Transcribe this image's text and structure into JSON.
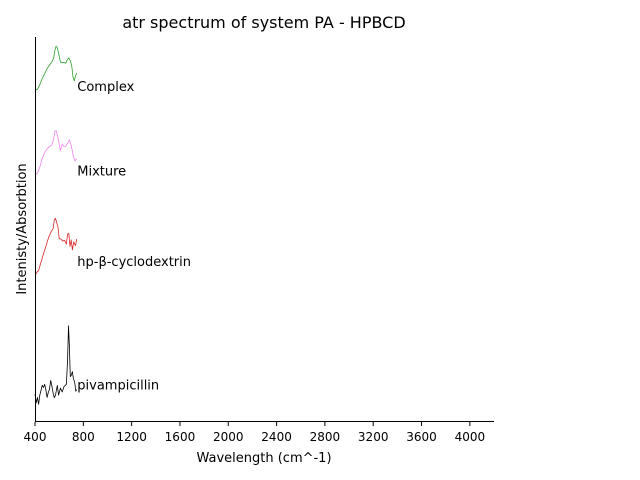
{
  "chart_data": {
    "type": "line",
    "title": "atr spectrum of system PA - HPBCD",
    "xlabel": "Wavelength (cm^-1)",
    "ylabel": "Intenisty/Absorbtion",
    "xlim": [
      400,
      4200
    ],
    "xticks": [
      400,
      800,
      1200,
      1600,
      2000,
      2400,
      2800,
      3200,
      3600,
      4000
    ],
    "xtick_labels": [
      "400",
      "800",
      "1200",
      "1600",
      "2000",
      "2400",
      "2800",
      "3200",
      "3600",
      "4000"
    ],
    "ylim": [
      0,
      100
    ],
    "y_ticks_shown": false,
    "grid": false,
    "legend": "none",
    "series": [
      {
        "name": "Complex",
        "color": "#2ca02c",
        "label_at": [
          750,
          86
        ],
        "points": [
          [
            400,
            86.1
          ],
          [
            420,
            86.4
          ],
          [
            440,
            87.6
          ],
          [
            460,
            89.2
          ],
          [
            480,
            90.5
          ],
          [
            500,
            91.8
          ],
          [
            520,
            92.7
          ],
          [
            540,
            93.5
          ],
          [
            555,
            94.6
          ],
          [
            565,
            96.6
          ],
          [
            575,
            97.6
          ],
          [
            585,
            97.2
          ],
          [
            595,
            95.8
          ],
          [
            610,
            93.5
          ],
          [
            625,
            93.3
          ],
          [
            640,
            93.4
          ],
          [
            655,
            93.2
          ],
          [
            665,
            94.0
          ],
          [
            680,
            94.6
          ],
          [
            695,
            93.6
          ],
          [
            705,
            92.4
          ],
          [
            715,
            89.6
          ],
          [
            725,
            88.6
          ],
          [
            735,
            89.9
          ],
          [
            745,
            90.6
          ]
        ]
      },
      {
        "name": "Mixture",
        "color": "#ee82ee",
        "label_at": [
          750,
          64
        ],
        "points": [
          [
            400,
            64.2
          ],
          [
            420,
            64.6
          ],
          [
            440,
            66.2
          ],
          [
            460,
            68.4
          ],
          [
            480,
            70.0
          ],
          [
            500,
            71.0
          ],
          [
            520,
            71.5
          ],
          [
            540,
            72.0
          ],
          [
            555,
            73.5
          ],
          [
            565,
            75.6
          ],
          [
            575,
            75.6
          ],
          [
            585,
            74.6
          ],
          [
            595,
            73.0
          ],
          [
            610,
            70.5
          ],
          [
            625,
            72.2
          ],
          [
            640,
            71.6
          ],
          [
            655,
            71.6
          ],
          [
            670,
            72.4
          ],
          [
            685,
            73.3
          ],
          [
            700,
            71.8
          ],
          [
            715,
            69.5
          ],
          [
            730,
            67.8
          ],
          [
            745,
            68.4
          ]
        ]
      },
      {
        "name": "hp-β-cyclodextrin",
        "color": "#d62728",
        "label_at": [
          750,
          40.5
        ],
        "points": [
          [
            400,
            38.0
          ],
          [
            415,
            38.9
          ],
          [
            430,
            39.3
          ],
          [
            445,
            41.0
          ],
          [
            460,
            42.5
          ],
          [
            475,
            44.2
          ],
          [
            490,
            45.6
          ],
          [
            505,
            47.2
          ],
          [
            520,
            48.5
          ],
          [
            535,
            49.5
          ],
          [
            550,
            50.2
          ],
          [
            560,
            52.5
          ],
          [
            570,
            52.9
          ],
          [
            580,
            51.8
          ],
          [
            590,
            50.6
          ],
          [
            600,
            47.6
          ],
          [
            615,
            47.5
          ],
          [
            630,
            47.0
          ],
          [
            645,
            47.2
          ],
          [
            660,
            46.2
          ],
          [
            670,
            48.8
          ],
          [
            680,
            49.0
          ],
          [
            690,
            45.6
          ],
          [
            700,
            47.3
          ],
          [
            710,
            44.7
          ],
          [
            720,
            46.8
          ],
          [
            735,
            45.8
          ],
          [
            745,
            47.5
          ]
        ]
      },
      {
        "name": "pivampicillin",
        "color": "#000000",
        "label_at": [
          750,
          8.4
        ],
        "points": [
          [
            400,
            7.2
          ],
          [
            410,
            5.0
          ],
          [
            420,
            6.4
          ],
          [
            430,
            4.6
          ],
          [
            440,
            7.0
          ],
          [
            450,
            8.2
          ],
          [
            460,
            9.5
          ],
          [
            470,
            9.0
          ],
          [
            480,
            9.8
          ],
          [
            490,
            8.3
          ],
          [
            500,
            6.4
          ],
          [
            510,
            7.7
          ],
          [
            520,
            8.5
          ],
          [
            530,
            10.8
          ],
          [
            540,
            9.3
          ],
          [
            550,
            7.5
          ],
          [
            560,
            6.3
          ],
          [
            570,
            7.0
          ],
          [
            585,
            9.5
          ],
          [
            595,
            7.0
          ],
          [
            610,
            8.8
          ],
          [
            625,
            7.8
          ],
          [
            640,
            9.2
          ],
          [
            660,
            9.8
          ],
          [
            670,
            16.3
          ],
          [
            677,
            25.0
          ],
          [
            684,
            20.2
          ],
          [
            692,
            11.8
          ],
          [
            700,
            12.1
          ],
          [
            710,
            13.1
          ],
          [
            718,
            11.2
          ],
          [
            728,
            10.5
          ],
          [
            738,
            8.0
          ],
          [
            745,
            8.4
          ]
        ]
      }
    ]
  }
}
